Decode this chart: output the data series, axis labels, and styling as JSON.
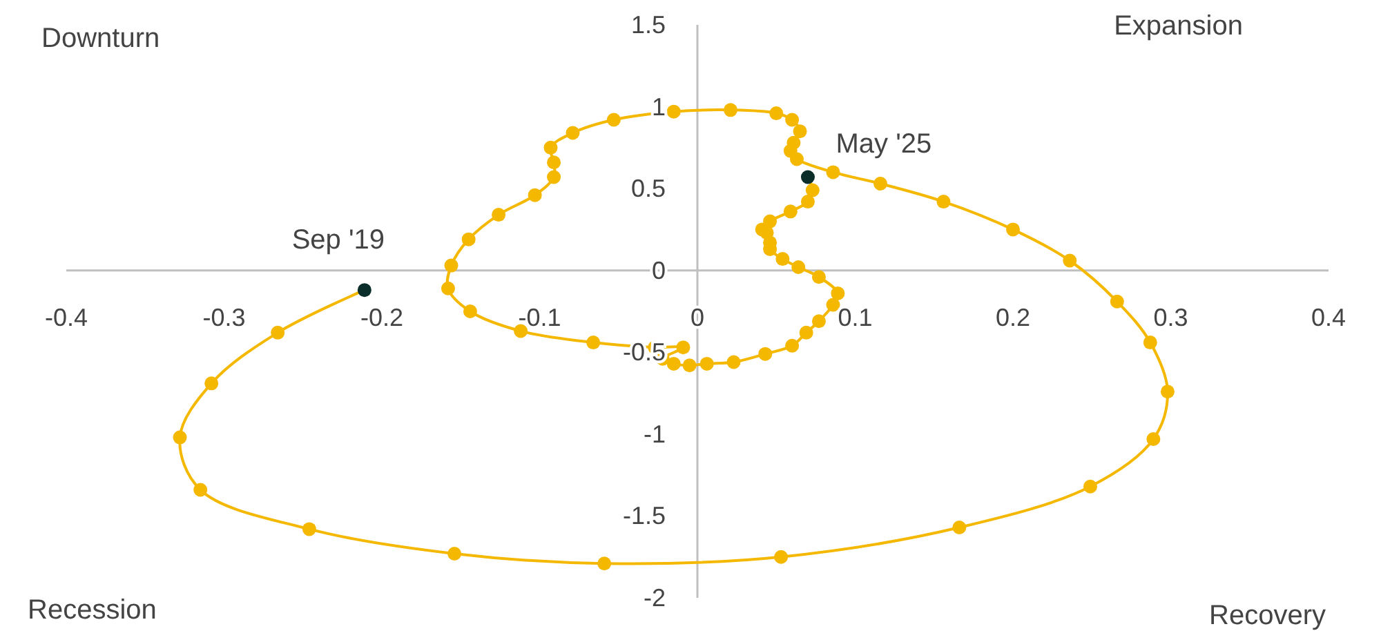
{
  "chart_data": {
    "type": "line",
    "marker": "circle",
    "grid": false,
    "xlim": [
      -0.4,
      0.4
    ],
    "ylim": [
      -2,
      1.5
    ],
    "xticks": [
      -0.4,
      -0.3,
      -0.2,
      -0.1,
      0,
      0.1,
      0.2,
      0.3,
      0.4
    ],
    "yticks": [
      -2,
      -1.5,
      -1,
      -0.5,
      0,
      0.5,
      1,
      1.5
    ],
    "annotations": [
      "Downturn",
      "Expansion",
      "Recession",
      "Recovery",
      {
        "text": "Sep '19",
        "x": -0.211,
        "y": -0.12
      },
      {
        "text": "May '25",
        "x": 0.07,
        "y": 0.57
      }
    ],
    "series": [
      {
        "color": "#f5b800",
        "x": [
          -0.211,
          -0.266,
          -0.308,
          -0.328,
          -0.315,
          -0.246,
          -0.154,
          -0.059,
          0.053,
          0.166,
          0.249,
          0.289,
          0.298,
          0.287,
          0.266,
          0.236,
          0.2,
          0.156,
          0.116,
          0.086,
          0.063,
          0.059,
          0.061,
          0.065,
          0.06,
          0.05,
          0.021,
          -0.015,
          -0.053,
          -0.079,
          -0.093,
          -0.091,
          -0.091,
          -0.103,
          -0.126,
          -0.145,
          -0.156,
          -0.158,
          -0.144,
          -0.112,
          -0.066,
          -0.027,
          -0.009,
          -0.022,
          -0.015,
          -0.005,
          0.006,
          0.023,
          0.043,
          0.06,
          0.069,
          0.077,
          0.086,
          0.089,
          0.077,
          0.064,
          0.054,
          0.046,
          0.046,
          0.044,
          0.041,
          0.046,
          0.059,
          0.07,
          0.073,
          0.07
        ],
        "values": [
          -0.12,
          -0.38,
          -0.69,
          -1.02,
          -1.34,
          -1.58,
          -1.73,
          -1.79,
          -1.75,
          -1.57,
          -1.32,
          -1.03,
          -0.74,
          -0.44,
          -0.19,
          0.06,
          0.25,
          0.42,
          0.53,
          0.6,
          0.68,
          0.73,
          0.78,
          0.85,
          0.92,
          0.96,
          0.98,
          0.97,
          0.92,
          0.84,
          0.75,
          0.66,
          0.57,
          0.46,
          0.34,
          0.19,
          0.03,
          -0.11,
          -0.25,
          -0.37,
          -0.44,
          -0.47,
          -0.47,
          -0.54,
          -0.57,
          -0.58,
          -0.57,
          -0.56,
          -0.51,
          -0.46,
          -0.38,
          -0.31,
          -0.21,
          -0.14,
          -0.04,
          0.02,
          0.07,
          0.13,
          0.17,
          0.23,
          0.25,
          0.3,
          0.36,
          0.42,
          0.49,
          0.57
        ],
        "colors": [
          "#0b2e2b",
          "#f5b800",
          "#f5b800",
          "#f5b800",
          "#f5b800",
          "#f5b800",
          "#f5b800",
          "#f5b800",
          "#f5b800",
          "#f5b800",
          "#f5b800",
          "#f5b800",
          "#f5b800",
          "#f5b800",
          "#f5b800",
          "#f5b800",
          "#f5b800",
          "#f5b800",
          "#f5b800",
          "#f5b800",
          "#f5b800",
          "#f5b800",
          "#f5b800",
          "#f5b800",
          "#f5b800",
          "#f5b800",
          "#f5b800",
          "#f5b800",
          "#f5b800",
          "#f5b800",
          "#f5b800",
          "#f5b800",
          "#f5b800",
          "#f5b800",
          "#f5b800",
          "#f5b800",
          "#f5b800",
          "#f5b800",
          "#f5b800",
          "#f5b800",
          "#f5b800",
          "#f5b800",
          "#f5b800",
          "#f5b800",
          "#f5b800",
          "#f5b800",
          "#f5b800",
          "#f5b800",
          "#f5b800",
          "#f5b800",
          "#f5b800",
          "#f5b800",
          "#f5b800",
          "#f5b800",
          "#f5b800",
          "#f5b800",
          "#f5b800",
          "#f5b800",
          "#f5b800",
          "#f5b800",
          "#f5b800",
          "#f5b800",
          "#f5b800",
          "#f5b800",
          "#f5b800",
          "#0b2e2b"
        ]
      }
    ]
  }
}
